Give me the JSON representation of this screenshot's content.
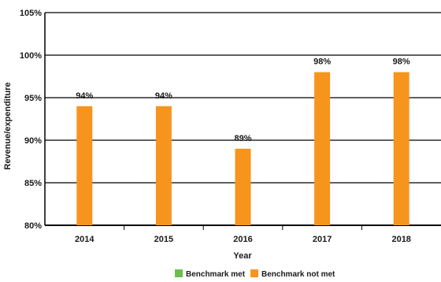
{
  "chart_data": {
    "type": "bar",
    "categories": [
      "2014",
      "2015",
      "2016",
      "2017",
      "2018"
    ],
    "values": [
      94,
      94,
      89,
      98,
      98
    ],
    "data_labels": [
      "94%",
      "94%",
      "89%",
      "98%",
      "98%"
    ],
    "xlabel": "Year",
    "ylabel": "Revenue/expenditure",
    "ylim": [
      80,
      105
    ],
    "yticks": [
      80,
      85,
      90,
      95,
      100,
      105
    ],
    "ytick_labels": [
      "80%",
      "85%",
      "90%",
      "95%",
      "100%",
      "105%"
    ],
    "grid": true,
    "legend": {
      "position": "bottom",
      "items": [
        {
          "label": "Benchmark met",
          "color": "#6abf4b"
        },
        {
          "label": "Benchmark not met",
          "color": "#f7941d"
        }
      ]
    },
    "bar_color": "#f7941d",
    "grid_color": "#000000"
  }
}
